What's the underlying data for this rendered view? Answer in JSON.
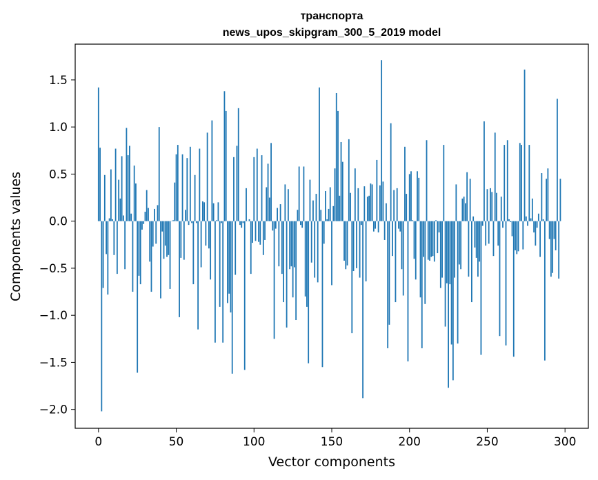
{
  "chart_data": {
    "type": "bar",
    "title": "транспорта",
    "subtitle": "news_upos_skipgram_300_5_2019 model",
    "xlabel": "Vector components",
    "ylabel": "Components values",
    "xlim": [
      -15,
      315
    ],
    "ylim": [
      -2.2,
      1.88
    ],
    "xticks": [
      0,
      50,
      100,
      150,
      200,
      250,
      300
    ],
    "xtick_labels": [
      "0",
      "50",
      "100",
      "150",
      "200",
      "250",
      "300"
    ],
    "yticks": [
      -2.0,
      -1.5,
      -1.0,
      -0.5,
      0.0,
      0.5,
      1.0,
      1.5
    ],
    "ytick_labels": [
      "−2.0",
      "−1.5",
      "−1.0",
      "−0.5",
      "0.0",
      "0.5",
      "1.0",
      "1.5"
    ],
    "grid": false,
    "bar_color": "#1f77b4",
    "values": [
      1.42,
      0.78,
      -2.02,
      -0.71,
      0.49,
      -0.35,
      -0.78,
      0.03,
      0.55,
      0.02,
      -0.36,
      0.77,
      -0.56,
      0.44,
      0.24,
      0.69,
      0.06,
      -0.51,
      0.99,
      0.7,
      0.8,
      0.08,
      -0.75,
      0.59,
      0.4,
      -1.61,
      -0.58,
      -0.67,
      -0.09,
      -0.03,
      0.1,
      0.33,
      0.14,
      -0.43,
      -0.75,
      -0.27,
      0.13,
      -0.24,
      0.17,
      1.0,
      -0.82,
      -0.11,
      -0.4,
      -0.26,
      -0.38,
      -0.36,
      -0.72,
      0.0,
      0.01,
      0.41,
      0.71,
      0.81,
      -1.02,
      -0.39,
      0.71,
      -0.41,
      0.12,
      0.67,
      -0.04,
      0.79,
      -0.02,
      -0.67,
      0.49,
      -0.02,
      -1.15,
      0.77,
      -0.49,
      0.21,
      0.2,
      -0.26,
      0.94,
      -0.29,
      -0.62,
      1.07,
      0.19,
      -1.29,
      0.01,
      0.2,
      -0.91,
      -0.02,
      -1.29,
      1.38,
      1.17,
      -0.87,
      -0.77,
      -0.97,
      -1.62,
      0.68,
      -0.57,
      0.8,
      1.2,
      -0.04,
      -0.07,
      -0.02,
      -1.58,
      0.35,
      0.0,
      0.02,
      -0.56,
      -0.23,
      0.68,
      -0.21,
      0.77,
      -0.22,
      -0.25,
      0.7,
      -0.36,
      -0.2,
      0.36,
      0.61,
      0.25,
      0.83,
      -0.1,
      -1.25,
      -0.08,
      0.14,
      -0.48,
      0.18,
      -0.56,
      -0.86,
      0.39,
      -1.13,
      0.34,
      -0.51,
      -0.48,
      -0.81,
      -0.49,
      -1.05,
      0.12,
      0.58,
      -0.04,
      -0.07,
      0.58,
      -0.8,
      -0.91,
      -1.51,
      0.44,
      -0.44,
      0.22,
      -0.6,
      0.29,
      -0.65,
      1.42,
      0.12,
      -1.55,
      -0.24,
      0.32,
      0.02,
      0.13,
      0.36,
      -0.68,
      0.16,
      0.56,
      1.36,
      1.17,
      0.27,
      0.84,
      0.63,
      -0.42,
      -0.51,
      -0.47,
      0.87,
      0.3,
      -1.19,
      -0.53,
      0.56,
      -0.5,
      0.35,
      -0.6,
      -0.04,
      -1.88,
      0.37,
      -0.64,
      0.26,
      0.27,
      0.4,
      0.39,
      -0.11,
      -0.08,
      0.65,
      -0.12,
      0.38,
      1.71,
      0.42,
      -0.2,
      0.19,
      -1.35,
      -1.1,
      1.04,
      -0.37,
      0.33,
      -0.86,
      0.35,
      -0.08,
      -0.11,
      -0.51,
      -0.79,
      0.79,
      0.29,
      -1.49,
      0.5,
      0.53,
      0.01,
      -0.4,
      -0.62,
      0.53,
      0.46,
      -0.81,
      -1.35,
      -0.38,
      -0.88,
      0.86,
      -0.41,
      -0.42,
      -0.38,
      -0.37,
      -0.43,
      0.01,
      -0.34,
      -0.12,
      -0.71,
      -0.6,
      0.81,
      -1.12,
      -0.66,
      -1.77,
      -0.67,
      -1.31,
      -1.69,
      -0.6,
      0.39,
      -1.3,
      -0.46,
      -0.51,
      0.24,
      0.26,
      0.19,
      0.52,
      -0.59,
      0.45,
      -0.86,
      0.05,
      -0.28,
      -0.39,
      -0.59,
      -0.43,
      -1.42,
      -0.05,
      1.06,
      -0.26,
      0.34,
      -0.24,
      0.35,
      0.31,
      -0.37,
      0.94,
      0.3,
      -0.26,
      -1.22,
      0.26,
      -0.07,
      0.81,
      -1.32,
      0.86,
      0.02,
      -0.01,
      -0.16,
      -1.44,
      -0.31,
      -0.35,
      -0.32,
      0.83,
      0.81,
      -0.3,
      1.61,
      0.05,
      -0.05,
      0.81,
      0.03,
      0.24,
      -0.12,
      -0.26,
      -0.07,
      0.08,
      -0.38,
      0.51,
      0.02,
      -1.48,
      0.45,
      0.56,
      -0.19,
      -0.59,
      -0.55,
      -0.19,
      -0.31,
      1.3,
      -0.61,
      0.45
    ]
  }
}
